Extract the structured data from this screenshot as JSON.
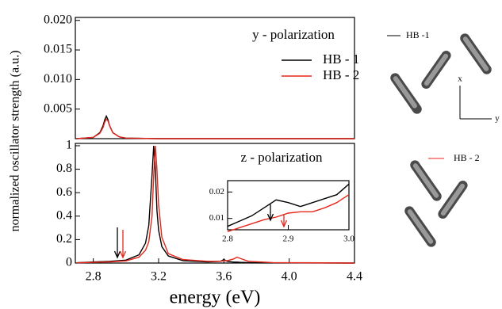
{
  "chart_data": [
    {
      "type": "line",
      "y_label": "normalized oscillator strength (a.u.)",
      "annotation": "y - polarization",
      "x": [
        2.7,
        2.8,
        2.84,
        2.86,
        2.87,
        2.88,
        2.89,
        2.9,
        2.92,
        2.96,
        3.0,
        3.2,
        4.4
      ],
      "series": [
        {
          "name": "HB - 1",
          "color": "#000000",
          "values": [
            0,
            0.0002,
            0.001,
            0.0022,
            0.0032,
            0.0038,
            0.0032,
            0.0022,
            0.001,
            0.0003,
            0.0001,
            0,
            0
          ]
        },
        {
          "name": "HB - 2",
          "color": "#e8271c",
          "values": [
            0,
            0.0002,
            0.0009,
            0.0019,
            0.0028,
            0.0033,
            0.003,
            0.0022,
            0.001,
            0.0003,
            0.0001,
            0,
            0
          ]
        }
      ],
      "xlim": [
        2.69,
        4.4
      ],
      "ylim": [
        0,
        0.0205
      ],
      "yticks": [
        {
          "value": 0.005,
          "label": "0.005"
        },
        {
          "value": 0.01,
          "label": "0.010"
        },
        {
          "value": 0.015,
          "label": "0.015"
        },
        {
          "value": 0.02,
          "label": "0.020"
        }
      ]
    },
    {
      "type": "line",
      "x_label": "energy (eV)",
      "annotation": "z - polarization",
      "x": [
        2.7,
        2.9,
        3.0,
        3.08,
        3.12,
        3.14,
        3.16,
        3.17,
        3.18,
        3.19,
        3.2,
        3.22,
        3.26,
        3.35,
        3.5,
        3.58,
        3.6,
        3.62,
        3.66,
        3.68,
        3.7,
        3.75,
        3.9,
        4.4
      ],
      "series": [
        {
          "color": "#000000",
          "values": [
            0.003,
            0.015,
            0.025,
            0.07,
            0.17,
            0.32,
            0.75,
            1.0,
            0.8,
            0.45,
            0.28,
            0.14,
            0.06,
            0.02,
            0.01,
            0.015,
            0.03,
            0.015,
            0.008,
            0.008,
            0.006,
            0.004,
            0.002,
            0
          ]
        },
        {
          "color": "#e8271c",
          "values": [
            0.002,
            0.01,
            0.018,
            0.05,
            0.11,
            0.18,
            0.4,
            0.75,
            1.0,
            0.8,
            0.5,
            0.22,
            0.08,
            0.03,
            0.015,
            0.015,
            0.02,
            0.02,
            0.035,
            0.05,
            0.04,
            0.015,
            0.004,
            0
          ]
        }
      ],
      "xlim": [
        2.69,
        4.4
      ],
      "ylim": [
        0,
        1.02
      ],
      "xticks": [
        2.8,
        3.2,
        3.6,
        {
          "value": 4.0,
          "label": "4.0"
        },
        4.4
      ],
      "yticks": [
        0,
        0.2,
        0.4,
        0.6,
        0.8,
        1
      ]
    },
    {
      "type": "line",
      "x": [
        2.8,
        2.82,
        2.84,
        2.86,
        2.88,
        2.9,
        2.92,
        2.94,
        2.96,
        2.98,
        3.0
      ],
      "series": [
        {
          "color": "#000000",
          "values": [
            0.007,
            0.009,
            0.011,
            0.014,
            0.017,
            0.016,
            0.0145,
            0.016,
            0.0175,
            0.019,
            0.023
          ]
        },
        {
          "color": "#e8271c",
          "values": [
            0.005,
            0.0065,
            0.008,
            0.0095,
            0.0105,
            0.012,
            0.0125,
            0.0125,
            0.014,
            0.016,
            0.019
          ]
        }
      ],
      "xlim": [
        2.8,
        3.0
      ],
      "ylim": [
        0.0057,
        0.0243
      ],
      "xticks": [
        2.8,
        2.9,
        {
          "value": 3.0,
          "label": "3.0"
        }
      ],
      "yticks": [
        0.01,
        0.02
      ]
    }
  ],
  "side_panel": {
    "label_1": "HB -1",
    "label_2": "HB - 2",
    "axis_x": "x",
    "axis_y": "y"
  }
}
